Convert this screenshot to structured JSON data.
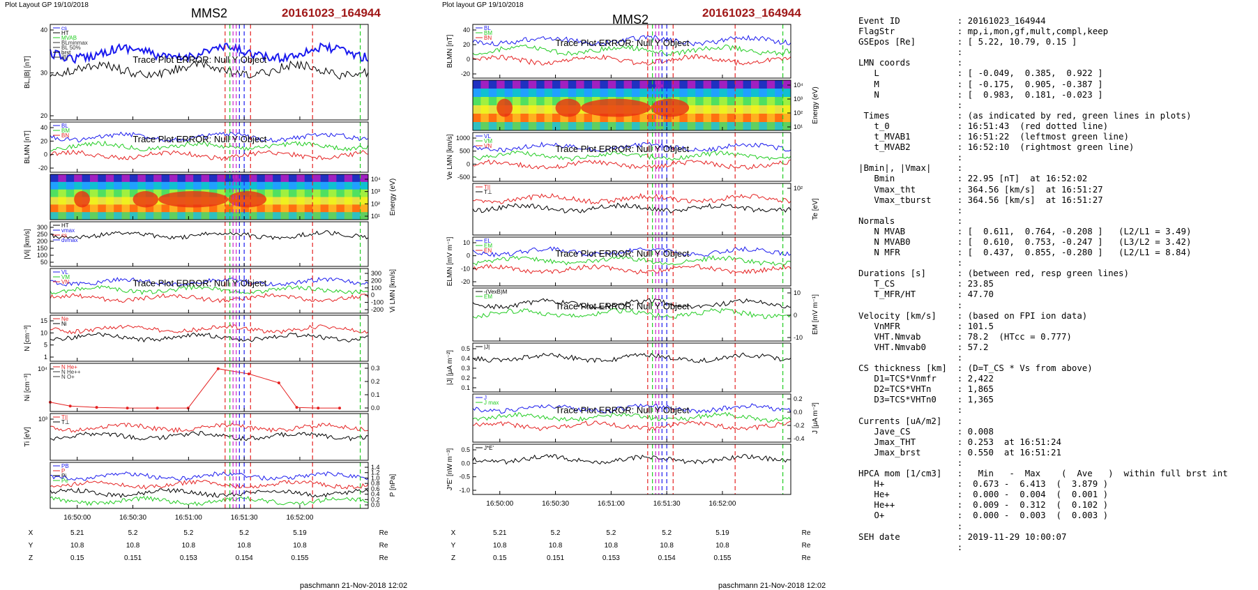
{
  "left_page": {
    "layout_label": "Plot Layout GP 19/10/2018",
    "title": "MMS2",
    "event": "20161023_164944",
    "footer": "paschmann 21-Nov-2018 12:02"
  },
  "right_page": {
    "layout_label": "Plot layout GP 19/10/2018",
    "title": "MMS2",
    "event": "20161023_164944",
    "footer": "paschmann 21-Nov-2018 12:02"
  },
  "error_message": "Trace Plot ERROR: Null Y Object",
  "colors": {
    "red": "#e52222",
    "green": "#22cc22",
    "blue": "#1a1aee",
    "black": "#000000",
    "magenta": "#cc22cc",
    "event": "#a01818"
  },
  "time_ticks": [
    "16:50:00",
    "16:50:30",
    "16:51:00",
    "16:51:30",
    "16:52:00"
  ],
  "position_table": {
    "rows": [
      {
        "name": "X",
        "values": [
          "5.21",
          "5.2",
          "5.2",
          "5.2",
          "5.19"
        ],
        "unit": "Re"
      },
      {
        "name": "Y",
        "values": [
          "10.8",
          "10.8",
          "10.8",
          "10.8",
          "10.8"
        ],
        "unit": "Re"
      },
      {
        "name": "Z",
        "values": [
          "0.15",
          "0.151",
          "0.153",
          "0.154",
          "0.155"
        ],
        "unit": "Re"
      }
    ]
  },
  "chart_data": [
    {
      "id": "L1",
      "type": "line",
      "ylabel": "BL,|B| [nT]",
      "left_ticks": [
        "40",
        "30",
        "20"
      ],
      "right_ticks": [],
      "legend": [
        "cs",
        "HT",
        "MVAB",
        "BLminmax",
        "BL 50%",
        "brst",
        "|B|"
      ],
      "series": [
        {
          "name": "BL",
          "color": "blue"
        },
        {
          "name": "|B|",
          "color": "black"
        }
      ]
    },
    {
      "id": "L2",
      "type": "line",
      "ylabel": "BLMN [nT]",
      "left_ticks": [
        "40",
        "20",
        "0",
        "-20"
      ],
      "right_ticks": [],
      "legend": [
        "BL",
        "BM",
        "BN"
      ],
      "series": [
        {
          "name": "BL",
          "color": "blue"
        },
        {
          "name": "BM",
          "color": "green"
        },
        {
          "name": "BN",
          "color": "red"
        }
      ]
    },
    {
      "id": "L3",
      "type": "heatmap",
      "ylabel": "Energy (eV)",
      "left_ticks": [],
      "right_ticks": [
        "10⁴",
        "10³",
        "10²",
        "10¹"
      ],
      "legend": [],
      "series": []
    },
    {
      "id": "L4",
      "type": "line",
      "ylabel": "|Vi| [km/s]",
      "left_ticks": [
        "300",
        "250",
        "200",
        "150",
        "100",
        "50"
      ],
      "right_ticks": [],
      "legend": [
        "HT",
        "vmax",
        "cs",
        "dvmax"
      ],
      "series": [
        {
          "name": "|Vi|",
          "color": "black"
        }
      ]
    },
    {
      "id": "L5",
      "type": "line",
      "ylabel": "Vi LMN [km/s]",
      "left_ticks": [],
      "right_ticks": [
        "300",
        "200",
        "100",
        "0",
        "-100",
        "-200"
      ],
      "legend": [
        "VL",
        "VM",
        "VN"
      ],
      "series": [
        {
          "name": "VL",
          "color": "blue"
        },
        {
          "name": "VM",
          "color": "green"
        },
        {
          "name": "VN",
          "color": "red"
        }
      ]
    },
    {
      "id": "L6",
      "type": "line",
      "ylabel": "N [cm⁻³]",
      "left_ticks": [
        "15",
        "10",
        "5",
        "1"
      ],
      "right_ticks": [],
      "legend": [
        "Ne",
        "Ni"
      ],
      "series": [
        {
          "name": "Ne",
          "color": "red"
        },
        {
          "name": "Ni",
          "color": "black"
        }
      ]
    },
    {
      "id": "L7",
      "type": "line",
      "ylabel": "Ni [cm⁻³]",
      "left_ticks": [
        "10⁴"
      ],
      "right_ticks": [
        "0.3",
        "0.2",
        "0.1",
        "0.0"
      ],
      "legend": [
        "N He+",
        "N He++",
        "N O+"
      ],
      "series": [
        {
          "name": "N He++",
          "color": "red",
          "x": [
            0,
            28,
            65,
            108,
            150,
            193,
            235,
            278,
            320,
            345,
            375,
            405
          ],
          "y": [
            0.05,
            0.02,
            0.01,
            0.005,
            0.005,
            0.005,
            0.31,
            0.27,
            0.2,
            0.01,
            0.005,
            0.005
          ]
        }
      ]
    },
    {
      "id": "L8",
      "type": "line",
      "ylabel": "Ti [eV]",
      "left_ticks": [
        "10³"
      ],
      "right_ticks": [],
      "legend": [
        "T||",
        "T⊥"
      ],
      "series": [
        {
          "name": "T||",
          "color": "red"
        },
        {
          "name": "T⊥",
          "color": "black"
        }
      ]
    },
    {
      "id": "L9",
      "type": "line",
      "ylabel": "P [nPa]",
      "left_ticks": [],
      "right_ticks": [
        "1.4",
        "1.2",
        "1.0",
        "0.8",
        "0.6",
        "0.4",
        "0.2",
        "0.0"
      ],
      "legend": [
        "PB",
        "P",
        "Pi",
        "Pe"
      ],
      "series": [
        {
          "name": "PB",
          "color": "blue"
        },
        {
          "name": "P",
          "color": "red"
        },
        {
          "name": "Pi",
          "color": "black"
        },
        {
          "name": "Pe",
          "color": "green"
        }
      ]
    },
    {
      "id": "R1",
      "type": "line",
      "ylabel": "BLMN [nT]",
      "left_ticks": [
        "40",
        "20",
        "0",
        "-20"
      ],
      "right_ticks": [],
      "legend": [
        "BL",
        "BM",
        "BN"
      ],
      "series": [
        {
          "name": "BL",
          "color": "blue"
        },
        {
          "name": "BM",
          "color": "green"
        },
        {
          "name": "BN",
          "color": "red"
        }
      ]
    },
    {
      "id": "R2",
      "type": "heatmap",
      "ylabel": "Energy (eV)",
      "left_ticks": [],
      "right_ticks": [
        "10⁴",
        "10³",
        "10²",
        "10¹"
      ],
      "legend": [],
      "series": []
    },
    {
      "id": "R3",
      "type": "line",
      "ylabel": "Ve LMN [km/s]",
      "left_ticks": [
        "1000",
        "500",
        "0",
        "-500"
      ],
      "right_ticks": [],
      "legend": [
        "VL",
        "VM",
        "VN"
      ],
      "series": [
        {
          "name": "VL",
          "color": "blue"
        },
        {
          "name": "VM",
          "color": "green"
        },
        {
          "name": "VN",
          "color": "red"
        }
      ]
    },
    {
      "id": "R4",
      "type": "line",
      "ylabel": "Te [eV]",
      "left_ticks": [],
      "right_ticks": [
        "10²"
      ],
      "legend": [
        "T||",
        "T⊥"
      ],
      "series": [
        {
          "name": "T||",
          "color": "red"
        },
        {
          "name": "T⊥",
          "color": "black"
        }
      ]
    },
    {
      "id": "R5",
      "type": "line",
      "ylabel": "ELMN [mV m⁻¹]",
      "left_ticks": [
        "10",
        "0",
        "-10",
        "-20"
      ],
      "right_ticks": [],
      "legend": [
        "EL",
        "EM",
        "EN"
      ],
      "series": [
        {
          "name": "EL",
          "color": "blue"
        },
        {
          "name": "EM",
          "color": "green"
        },
        {
          "name": "EN",
          "color": "red"
        }
      ]
    },
    {
      "id": "R6",
      "type": "line",
      "ylabel": "EM [mV m⁻¹]",
      "left_ticks": [],
      "right_ticks": [
        "10",
        "0",
        "-10"
      ],
      "legend": [
        "-(VexB)M",
        "EM"
      ],
      "series": [
        {
          "name": "-(VexB)M",
          "color": "black"
        },
        {
          "name": "EM",
          "color": "green"
        }
      ]
    },
    {
      "id": "R7",
      "type": "line",
      "ylabel": "|J| [μA m⁻²]",
      "left_ticks": [
        "0.5",
        "0.4",
        "0.3",
        "0.2",
        "0.1"
      ],
      "right_ticks": [],
      "legend": [
        "|J|"
      ],
      "series": [
        {
          "name": "|J|",
          "color": "black"
        }
      ]
    },
    {
      "id": "R8",
      "type": "line",
      "ylabel": "J [μA m⁻²]",
      "left_ticks": [],
      "right_ticks": [
        "0.2",
        "0.0",
        "-0.2",
        "-0.4"
      ],
      "legend": [
        "J",
        "J max"
      ],
      "series": [
        {
          "name": "JL",
          "color": "blue"
        },
        {
          "name": "JM",
          "color": "green"
        },
        {
          "name": "JN",
          "color": "red"
        }
      ]
    },
    {
      "id": "R9",
      "type": "line",
      "ylabel": "J*E' [nW m⁻³]",
      "left_ticks": [
        "0.5",
        "0.0",
        "-0.5",
        "-1.0"
      ],
      "right_ticks": [],
      "legend": [
        "J*E'"
      ],
      "series": [
        {
          "name": "J*E'",
          "color": "black"
        }
      ]
    }
  ],
  "info_panel": {
    "sections": [
      {
        "rows": [
          [
            "Event ID",
            ": 20161023_164944"
          ],
          [
            "FlagStr",
            ": mp,i,mon,gf,mult,compl,keep"
          ],
          [
            "GSEpos [Re]",
            ": [ 5.22, 10.79, 0.15 ]"
          ],
          [
            "",
            ":"
          ]
        ]
      },
      {
        "rows": [
          [
            "LMN coords",
            ":"
          ],
          [
            "   L",
            ": [ -0.049,  0.385,  0.922 ]"
          ],
          [
            "   M",
            ": [ -0.175,  0.905, -0.387 ]"
          ],
          [
            "   N",
            ": [  0.983,  0.181, -0.023 ]"
          ],
          [
            "",
            ":"
          ]
        ]
      },
      {
        "rows": [
          [
            " Times",
            ": (as indicated by red, green lines in plots)"
          ],
          [
            "   t_0",
            ": 16:51:43  (red dotted line)"
          ],
          [
            "   t_MVAB1",
            ": 16:51:22  (leftmost green line)"
          ],
          [
            "   t_MVAB2",
            ": 16:52:10  (rightmost green line)"
          ],
          [
            "",
            ":"
          ]
        ]
      },
      {
        "rows": [
          [
            "|Bmin|, |Vmax|",
            ":"
          ],
          [
            "   Bmin",
            ": 22.95 [nT]  at 16:52:02"
          ],
          [
            "   Vmax_tht",
            ": 364.56 [km/s]  at 16:51:27"
          ],
          [
            "   Vmax_tburst",
            ": 364.56 [km/s]  at 16:51:27"
          ],
          [
            "",
            ":"
          ]
        ]
      },
      {
        "rows": [
          [
            "Normals",
            ":"
          ],
          [
            "   N MVAB",
            ": [  0.611,  0.764, -0.208 ]   (L2/L1 = 3.49)"
          ],
          [
            "   N MVAB0",
            ": [  0.610,  0.753, -0.247 ]   (L3/L2 = 3.42)"
          ],
          [
            "   N MFR",
            ": [  0.437,  0.855, -0.280 ]   (L2/L1 = 8.84)"
          ],
          [
            "",
            ":"
          ]
        ]
      },
      {
        "rows": [
          [
            "Durations [s]",
            ": (between red, resp green lines)"
          ],
          [
            "   T_CS",
            ": 23.85"
          ],
          [
            "   T_MFR/HT",
            ": 47.70"
          ],
          [
            "",
            ":"
          ]
        ]
      },
      {
        "rows": [
          [
            "Velocity [km/s]",
            ": (based on FPI ion data)"
          ],
          [
            "   VnMFR",
            ": 101.5"
          ],
          [
            "   VHT.Nmvab",
            ": 78.2  (HTcc = 0.777)"
          ],
          [
            "   VHT.Nmvab0",
            ": 57.2"
          ],
          [
            "",
            ":"
          ]
        ]
      },
      {
        "rows": [
          [
            "CS thickness [km]",
            ": (D=T_CS * Vs from above)"
          ],
          [
            "   D1=TCS*Vnmfr",
            ": 2,422"
          ],
          [
            "   D2=TCS*VHTn",
            ": 1,865"
          ],
          [
            "   D3=TCS*VHTn0",
            ": 1,365"
          ],
          [
            "",
            ":"
          ]
        ]
      },
      {
        "rows": [
          [
            "Currents [uA/m2]",
            ":"
          ],
          [
            "   Jave_CS",
            ": 0.008"
          ],
          [
            "   Jmax_THT",
            ": 0.253  at 16:51:24"
          ],
          [
            "   Jmax_brst",
            ": 0.550  at 16:51:21"
          ],
          [
            "",
            ":"
          ]
        ]
      },
      {
        "rows": [
          [
            "HPCA mom [1/cm3]",
            ":   Min   -  Max    (  Ave   )  within full brst int"
          ],
          [
            "   H+",
            ":  0.673 -  6.413  (  3.879 )"
          ],
          [
            "   He+",
            ":  0.000 -  0.004  (  0.001 )"
          ],
          [
            "   He++",
            ":  0.009 -  0.312  (  0.102 )"
          ],
          [
            "   O+",
            ":  0.000 -  0.003  (  0.003 )"
          ],
          [
            "",
            ":"
          ]
        ]
      },
      {
        "rows": [
          [
            "SEH date",
            ": 2019-11-29 10:00:07"
          ],
          [
            "",
            ":"
          ]
        ]
      }
    ]
  }
}
